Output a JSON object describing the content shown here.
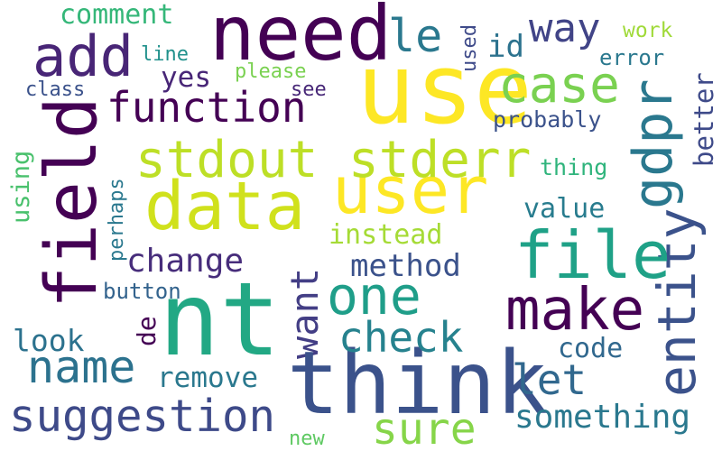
{
  "words": [
    {
      "text": "need",
      "color": "#440154"
    },
    {
      "text": "use",
      "color": "#fde725"
    },
    {
      "text": "nt",
      "color": "#22a884"
    },
    {
      "text": "think",
      "color": "#3b528b"
    },
    {
      "text": "field",
      "color": "#440154"
    },
    {
      "text": "data",
      "color": "#d0e11c"
    },
    {
      "text": "user",
      "color": "#fde725"
    },
    {
      "text": "file",
      "color": "#1fa187"
    },
    {
      "text": "add",
      "color": "#482576"
    },
    {
      "text": "stdout stderr",
      "color": "#bddf26"
    },
    {
      "text": "make",
      "color": "#440154"
    },
    {
      "text": "one",
      "color": "#1f9e89"
    },
    {
      "text": "case",
      "color": "#7ad151"
    },
    {
      "text": "gdpr",
      "color": "#2a788e"
    },
    {
      "text": "entity",
      "color": "#3b528b"
    },
    {
      "text": "name",
      "color": "#2c728e"
    },
    {
      "text": "suggestion",
      "color": "#3e4a89"
    },
    {
      "text": "sure",
      "color": "#86d549"
    },
    {
      "text": "function",
      "color": "#440154"
    },
    {
      "text": "way",
      "color": "#414487"
    },
    {
      "text": "le",
      "color": "#2a788e"
    },
    {
      "text": "want",
      "color": "#433e85"
    },
    {
      "text": "check",
      "color": "#26828e"
    },
    {
      "text": "let",
      "color": "#31688e"
    },
    {
      "text": "something",
      "color": "#2a788e"
    },
    {
      "text": "method",
      "color": "#3b528b"
    },
    {
      "text": "change",
      "color": "#472d7b"
    },
    {
      "text": "code",
      "color": "#31688e"
    },
    {
      "text": "look",
      "color": "#2c728e"
    },
    {
      "text": "remove",
      "color": "#2a788e"
    },
    {
      "text": "instead",
      "color": "#a5db36"
    },
    {
      "text": "value",
      "color": "#287c8e"
    },
    {
      "text": "comment",
      "color": "#35b779"
    },
    {
      "text": "yes",
      "color": "#482677"
    },
    {
      "text": "id",
      "color": "#2c728e"
    },
    {
      "text": "better",
      "color": "#3e4a89"
    },
    {
      "text": "probably",
      "color": "#3b528b"
    },
    {
      "text": "thing",
      "color": "#2fb47c"
    },
    {
      "text": "using",
      "color": "#4ac16d"
    },
    {
      "text": "perhaps",
      "color": "#2a788e"
    },
    {
      "text": "button",
      "color": "#33638d"
    },
    {
      "text": "de",
      "color": "#440154"
    },
    {
      "text": "work",
      "color": "#a0da39"
    },
    {
      "text": "error",
      "color": "#2a788e"
    },
    {
      "text": "used",
      "color": "#3e4a89"
    },
    {
      "text": "line",
      "color": "#21918c"
    },
    {
      "text": "please",
      "color": "#7ad151"
    },
    {
      "text": "class",
      "color": "#3b528b"
    },
    {
      "text": "see",
      "color": "#482878"
    },
    {
      "text": "new",
      "color": "#5ec962"
    }
  ]
}
